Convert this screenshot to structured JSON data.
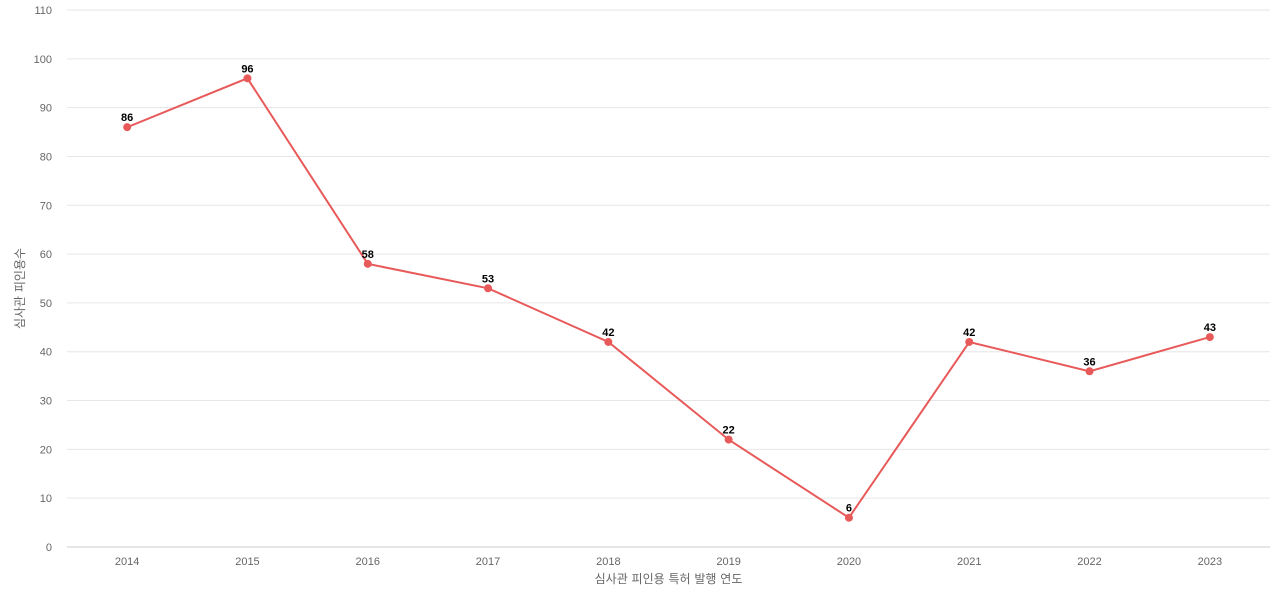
{
  "chart_data": {
    "type": "line",
    "title": "",
    "xlabel": "심사관 피인용 특허 발행 연도",
    "ylabel": "심사관 피인용수",
    "categories": [
      "2014",
      "2015",
      "2016",
      "2017",
      "2018",
      "2019",
      "2020",
      "2021",
      "2022",
      "2023"
    ],
    "series": [
      {
        "values": [
          86,
          96,
          58,
          53,
          42,
          22,
          6,
          42,
          36,
          43
        ],
        "color": "#e85a5a"
      }
    ],
    "ylim": [
      0,
      110
    ],
    "yticks": [
      0,
      10,
      20,
      30,
      40,
      50,
      60,
      70,
      80,
      90,
      100,
      110
    ],
    "grid": true,
    "data_labels": true
  }
}
